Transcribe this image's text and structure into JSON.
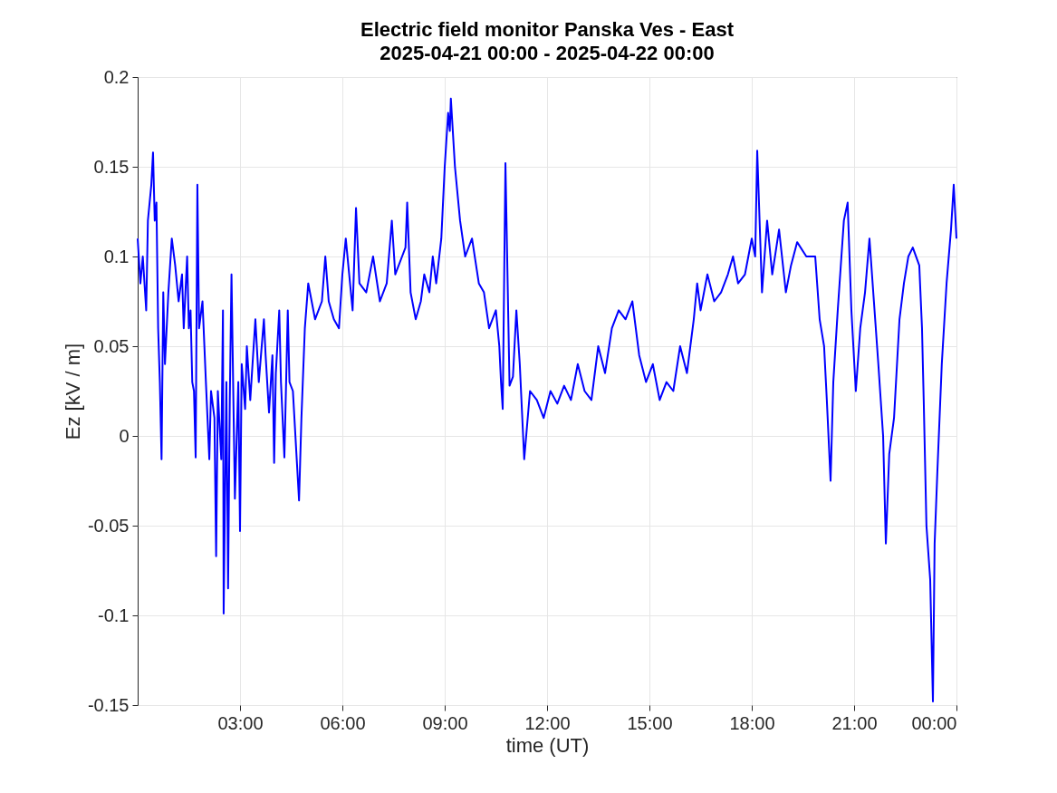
{
  "chart_data": {
    "type": "line",
    "title": "Electric field monitor Panska Ves - East",
    "subtitle": "2025-04-21 00:00 - 2025-04-22 00:00",
    "xlabel": "time (UT)",
    "ylabel": "Ez [kV / m]",
    "xlim": [
      0,
      24
    ],
    "xticks": [
      {
        "value": 3,
        "label": "03:00"
      },
      {
        "value": 6,
        "label": "06:00"
      },
      {
        "value": 9,
        "label": "09:00"
      },
      {
        "value": 12,
        "label": "12:00"
      },
      {
        "value": 15,
        "label": "15:00"
      },
      {
        "value": 18,
        "label": "18:00"
      },
      {
        "value": 21,
        "label": "21:00"
      },
      {
        "value": 24,
        "label": "00:00"
      }
    ],
    "ylim": [
      -0.15,
      0.2
    ],
    "yticks": [
      -0.15,
      -0.1,
      -0.05,
      0,
      0.05,
      0.1,
      0.15,
      0.2
    ],
    "grid": true,
    "legend": false,
    "marker": "none",
    "line_style": "solid",
    "x": [
      0.0,
      0.08,
      0.15,
      0.25,
      0.3,
      0.4,
      0.45,
      0.5,
      0.55,
      0.6,
      0.65,
      0.7,
      0.75,
      0.8,
      0.9,
      1.0,
      1.1,
      1.2,
      1.3,
      1.35,
      1.45,
      1.5,
      1.55,
      1.6,
      1.65,
      1.7,
      1.75,
      1.8,
      1.9,
      2.0,
      2.1,
      2.15,
      2.25,
      2.3,
      2.35,
      2.45,
      2.5,
      2.52,
      2.6,
      2.65,
      2.7,
      2.75,
      2.85,
      2.95,
      3.0,
      3.05,
      3.15,
      3.2,
      3.3,
      3.45,
      3.55,
      3.7,
      3.75,
      3.85,
      3.95,
      4.0,
      4.05,
      4.15,
      4.2,
      4.3,
      4.4,
      4.45,
      4.55,
      4.73,
      4.8,
      4.9,
      5.0,
      5.2,
      5.4,
      5.5,
      5.6,
      5.75,
      5.9,
      6.0,
      6.1,
      6.2,
      6.3,
      6.4,
      6.5,
      6.7,
      6.9,
      7.1,
      7.3,
      7.45,
      7.55,
      7.75,
      7.85,
      7.9,
      8.0,
      8.15,
      8.3,
      8.4,
      8.55,
      8.65,
      8.75,
      8.9,
      9.0,
      9.1,
      9.15,
      9.18,
      9.3,
      9.45,
      9.6,
      9.8,
      10.0,
      10.15,
      10.3,
      10.5,
      10.6,
      10.65,
      10.7,
      10.78,
      10.9,
      11.0,
      11.1,
      11.2,
      11.33,
      11.5,
      11.7,
      11.9,
      12.1,
      12.3,
      12.5,
      12.7,
      12.9,
      13.1,
      13.3,
      13.5,
      13.7,
      13.9,
      14.1,
      14.3,
      14.5,
      14.7,
      14.9,
      15.1,
      15.3,
      15.5,
      15.7,
      15.9,
      16.1,
      16.3,
      16.4,
      16.5,
      16.7,
      16.9,
      17.1,
      17.3,
      17.45,
      17.6,
      17.8,
      18.0,
      18.1,
      18.16,
      18.3,
      18.45,
      18.6,
      18.8,
      19.0,
      19.15,
      19.33,
      19.6,
      19.86,
      19.99,
      20.12,
      20.2,
      20.31,
      20.39,
      20.52,
      20.7,
      20.81,
      20.92,
      21.05,
      21.18,
      21.32,
      21.45,
      21.58,
      21.71,
      21.85,
      21.93,
      22.03,
      22.17,
      22.33,
      22.46,
      22.59,
      22.72,
      22.91,
      22.99,
      23.04,
      23.12,
      23.23,
      23.31,
      23.36,
      23.44,
      23.57,
      23.71,
      23.84,
      23.92,
      24.0
    ],
    "series": [
      {
        "color": "#0000ff",
        "values": [
          0.11,
          0.085,
          0.1,
          0.07,
          0.12,
          0.14,
          0.158,
          0.12,
          0.13,
          0.06,
          0.03,
          -0.013,
          0.08,
          0.04,
          0.08,
          0.11,
          0.095,
          0.075,
          0.09,
          0.06,
          0.1,
          0.06,
          0.07,
          0.03,
          0.025,
          -0.012,
          0.14,
          0.06,
          0.075,
          0.03,
          -0.013,
          0.025,
          0.01,
          -0.067,
          0.025,
          -0.013,
          0.07,
          -0.099,
          0.03,
          -0.085,
          0.02,
          0.09,
          -0.035,
          0.03,
          -0.053,
          0.04,
          0.015,
          0.05,
          0.02,
          0.065,
          0.03,
          0.065,
          0.045,
          0.013,
          0.045,
          -0.015,
          0.035,
          0.07,
          0.03,
          -0.012,
          0.07,
          0.03,
          0.025,
          -0.036,
          0.01,
          0.06,
          0.085,
          0.065,
          0.075,
          0.1,
          0.075,
          0.065,
          0.06,
          0.09,
          0.11,
          0.09,
          0.07,
          0.127,
          0.085,
          0.08,
          0.1,
          0.075,
          0.085,
          0.12,
          0.09,
          0.1,
          0.105,
          0.13,
          0.08,
          0.065,
          0.075,
          0.09,
          0.08,
          0.1,
          0.085,
          0.11,
          0.15,
          0.18,
          0.17,
          0.188,
          0.15,
          0.12,
          0.1,
          0.11,
          0.085,
          0.08,
          0.06,
          0.07,
          0.05,
          0.03,
          0.015,
          0.152,
          0.028,
          0.033,
          0.07,
          0.04,
          -0.013,
          0.025,
          0.02,
          0.01,
          0.025,
          0.018,
          0.028,
          0.02,
          0.04,
          0.025,
          0.02,
          0.05,
          0.035,
          0.06,
          0.07,
          0.065,
          0.075,
          0.045,
          0.03,
          0.04,
          0.02,
          0.03,
          0.025,
          0.05,
          0.035,
          0.065,
          0.085,
          0.07,
          0.09,
          0.075,
          0.08,
          0.09,
          0.1,
          0.085,
          0.09,
          0.11,
          0.1,
          0.159,
          0.08,
          0.12,
          0.09,
          0.115,
          0.08,
          0.095,
          0.108,
          0.1,
          0.1,
          0.065,
          0.05,
          0.02,
          -0.025,
          0.03,
          0.07,
          0.12,
          0.13,
          0.07,
          0.025,
          0.06,
          0.08,
          0.11,
          0.075,
          0.04,
          0.0,
          -0.06,
          -0.01,
          0.01,
          0.065,
          0.085,
          0.1,
          0.105,
          0.095,
          0.06,
          0.02,
          -0.05,
          -0.08,
          -0.148,
          -0.06,
          -0.02,
          0.04,
          0.085,
          0.115,
          0.14,
          0.11
        ]
      }
    ]
  }
}
